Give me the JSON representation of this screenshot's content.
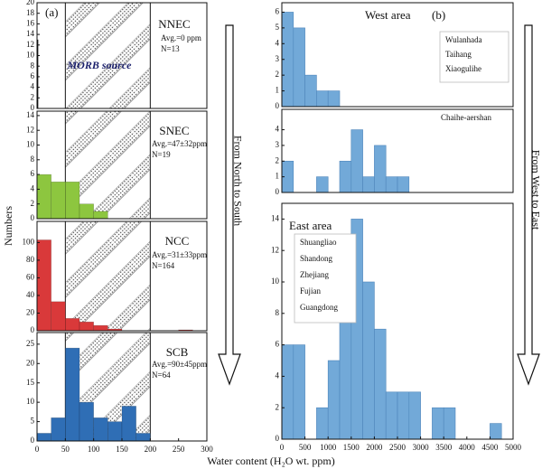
{
  "figure": {
    "ylabel": "Numbers",
    "xlabel": "Water content (H₂O wt. ppm)",
    "arrows": [
      "From North to South",
      "From West to East"
    ]
  },
  "chart_data": [
    {
      "type": "histogram",
      "panel_label": "(a)",
      "title": "NNEC",
      "annotations": [
        "Avg.=0 ppm",
        "N=13"
      ],
      "band_label": "MORB source",
      "band": [
        50,
        200
      ],
      "bins": [
        0,
        2
      ],
      "values": [
        13
      ],
      "color": "#111111",
      "xlim": [
        0,
        300
      ],
      "ylim": [
        0,
        20
      ],
      "yticks": [
        0,
        2,
        4,
        6,
        8,
        10,
        12,
        14,
        16,
        18,
        20
      ]
    },
    {
      "type": "histogram",
      "title": "SNEC",
      "annotations": [
        "Avg.=47±32ppm",
        "N=19"
      ],
      "band": [
        50,
        200
      ],
      "bins": [
        0,
        25,
        50,
        75,
        100,
        125
      ],
      "values": [
        6,
        5,
        5,
        2,
        1
      ],
      "color": "#8dc63f",
      "xlim": [
        0,
        300
      ],
      "ylim": [
        0,
        14.6
      ],
      "yticks": [
        0,
        2,
        4,
        6,
        8,
        10,
        12,
        14
      ]
    },
    {
      "type": "histogram",
      "title": "NCC",
      "annotations": [
        "Avg.=31±33ppm",
        "N=164"
      ],
      "band": [
        50,
        200
      ],
      "bins": [
        0,
        25,
        50,
        75,
        100,
        125,
        150,
        175,
        200,
        225,
        250,
        275
      ],
      "values": [
        103,
        33,
        14,
        10,
        6,
        2,
        0,
        0,
        0,
        0,
        1
      ],
      "color": "#d9393a",
      "xlim": [
        0,
        300
      ],
      "ylim": [
        0,
        124
      ],
      "yticks": [
        0,
        20,
        40,
        60,
        80,
        100
      ]
    },
    {
      "type": "histogram",
      "title": "SCB",
      "annotations": [
        "Avg.=90±45ppm",
        "N=64"
      ],
      "band": [
        50,
        200
      ],
      "bins": [
        0,
        25,
        50,
        75,
        100,
        125,
        150,
        175,
        200
      ],
      "values": [
        2,
        6,
        24,
        10,
        6,
        5,
        9,
        2
      ],
      "color": "#2f6eb5",
      "xlim": [
        0,
        300
      ],
      "ylim": [
        0,
        28
      ],
      "yticks": [
        0,
        5,
        10,
        15,
        20,
        25
      ],
      "xticks": [
        0,
        50,
        100,
        150,
        200,
        250,
        300
      ]
    },
    {
      "type": "histogram",
      "panel_label": "(b)",
      "title": "West area",
      "legend": [
        "Wulanhada",
        "Taihang",
        "Xiaogulihe"
      ],
      "bins": [
        0,
        250,
        500,
        750,
        1000,
        1250
      ],
      "values": [
        6,
        5,
        2,
        1,
        1
      ],
      "color": "#72a9d8",
      "xlim": [
        0,
        5000
      ],
      "ylim": [
        0,
        6.6
      ],
      "yticks": [
        0,
        1,
        2,
        3,
        4,
        5,
        6
      ]
    },
    {
      "type": "histogram",
      "title": "Chaihe-aershan",
      "bins": [
        0,
        250,
        500,
        750,
        1000,
        1250,
        1500,
        1750,
        2000,
        2250,
        2500,
        2750
      ],
      "values": [
        2,
        0,
        0,
        1,
        0,
        2,
        4,
        1,
        3,
        1,
        1
      ],
      "color": "#72a9d8",
      "xlim": [
        0,
        5000
      ],
      "ylim": [
        0,
        5.3
      ],
      "yticks": [
        0,
        1,
        2,
        3,
        4
      ]
    },
    {
      "type": "histogram",
      "title": "East area",
      "legend": [
        "Shuangliao",
        "Shandong",
        "Zhejiang",
        "Fujian",
        "Guangdong"
      ],
      "bins": [
        0,
        250,
        500,
        750,
        1000,
        1250,
        1500,
        1750,
        2000,
        2250,
        2500,
        2750,
        3000,
        3250,
        3500,
        3750,
        4000,
        4250,
        4500,
        4750
      ],
      "values": [
        6,
        6,
        0,
        2,
        5,
        12,
        14,
        10,
        7,
        3,
        3,
        3,
        0,
        2,
        2,
        0,
        0,
        0,
        1
      ],
      "color": "#72a9d8",
      "xlim": [
        0,
        5000
      ],
      "ylim": [
        0,
        15
      ],
      "yticks": [
        0,
        2,
        4,
        6,
        8,
        10,
        12,
        14
      ],
      "xticks": [
        0,
        500,
        1000,
        1500,
        2000,
        2500,
        3000,
        3500,
        4000,
        4500,
        5000
      ]
    }
  ]
}
